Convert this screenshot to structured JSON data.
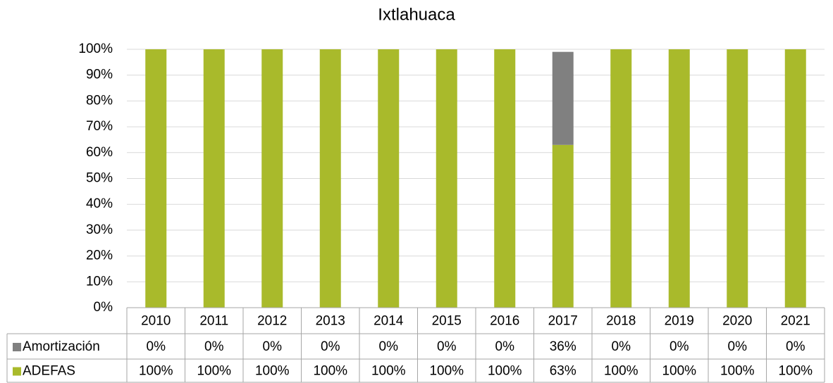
{
  "chart_data": {
    "type": "stacked-bar",
    "title": "Ixtlahuaca",
    "categories": [
      "2010",
      "2011",
      "2012",
      "2013",
      "2014",
      "2015",
      "2016",
      "2017",
      "2018",
      "2019",
      "2020",
      "2021"
    ],
    "series": [
      {
        "name": "Amortización",
        "color": "#808080",
        "values": [
          0,
          0,
          0,
          0,
          0,
          0,
          0,
          36,
          0,
          0,
          0,
          0
        ],
        "value_labels": [
          "0%",
          "0%",
          "0%",
          "0%",
          "0%",
          "0%",
          "0%",
          "36%",
          "0%",
          "0%",
          "0%",
          "0%"
        ]
      },
      {
        "name": "ADEFAS",
        "color": "#a9ba2b",
        "values": [
          100,
          100,
          100,
          100,
          100,
          100,
          100,
          63,
          100,
          100,
          100,
          100
        ],
        "value_labels": [
          "100%",
          "100%",
          "100%",
          "100%",
          "100%",
          "100%",
          "100%",
          "63%",
          "100%",
          "100%",
          "100%",
          "100%"
        ]
      }
    ],
    "ylim": [
      0,
      100
    ],
    "yticks": [
      {
        "value": 0,
        "label": "0%"
      },
      {
        "value": 10,
        "label": "10%"
      },
      {
        "value": 20,
        "label": "20%"
      },
      {
        "value": 30,
        "label": "30%"
      },
      {
        "value": 40,
        "label": "40%"
      },
      {
        "value": 50,
        "label": "50%"
      },
      {
        "value": 60,
        "label": "60%"
      },
      {
        "value": 70,
        "label": "70%"
      },
      {
        "value": 80,
        "label": "80%"
      },
      {
        "value": 90,
        "label": "90%"
      },
      {
        "value": 100,
        "label": "100%"
      }
    ],
    "grid": true
  }
}
